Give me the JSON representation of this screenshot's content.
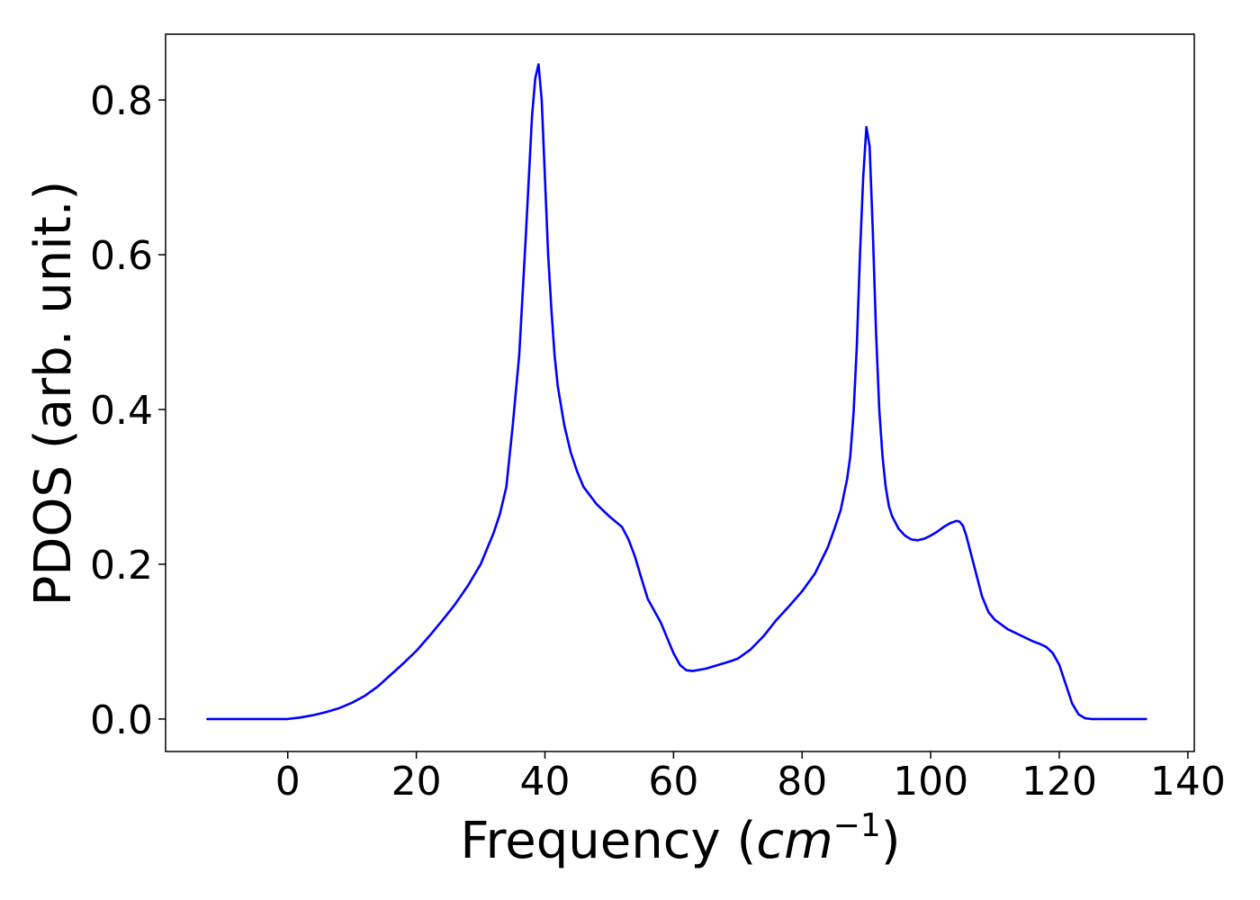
{
  "chart_data": {
    "type": "line",
    "title": "",
    "xlabel_main": "Frequency (",
    "xlabel_unit": "cm",
    "xlabel_exp": "−1",
    "xlabel_close": ")",
    "ylabel": "PDOS (arb. unit.)",
    "xlim": [
      -19,
      141
    ],
    "ylim": [
      -0.042,
      0.885
    ],
    "xticks": [
      0,
      20,
      40,
      60,
      80,
      100,
      120,
      140
    ],
    "xtick_labels": [
      "0",
      "20",
      "40",
      "60",
      "80",
      "100",
      "120",
      "140"
    ],
    "yticks": [
      0.0,
      0.2,
      0.4,
      0.6,
      0.8
    ],
    "ytick_labels": [
      "0.0",
      "0.2",
      "0.4",
      "0.6",
      "0.8"
    ],
    "grid": false,
    "series": [
      {
        "color": "#0000ff",
        "x": [
          -12.5,
          -5,
          0,
          2,
          4,
          6,
          8,
          10,
          12,
          14,
          16,
          18,
          20,
          22,
          24,
          26,
          28,
          30,
          32,
          33,
          34,
          35,
          36,
          37,
          38,
          38.5,
          39,
          39.5,
          40,
          40.5,
          41,
          41.5,
          42,
          43,
          44,
          45,
          46,
          48,
          50,
          52,
          53,
          54,
          55,
          56,
          57,
          58,
          59,
          60,
          61,
          62,
          63,
          65,
          67,
          69,
          70,
          72,
          74,
          76,
          78,
          80,
          82,
          84,
          85,
          86,
          87,
          87.5,
          88,
          88.5,
          89,
          89.5,
          90,
          90.5,
          91,
          91.5,
          92,
          92.5,
          93,
          93.5,
          94,
          95,
          96,
          97,
          98,
          99,
          100,
          101,
          102,
          103,
          104,
          104.5,
          105,
          105.5,
          106,
          107,
          108,
          109,
          110,
          112,
          114,
          116,
          117,
          118,
          119,
          120,
          121,
          122,
          123,
          124,
          125,
          127,
          130,
          133.5
        ],
        "y": [
          0.0,
          0.0,
          0.0,
          0.002,
          0.005,
          0.009,
          0.014,
          0.021,
          0.03,
          0.042,
          0.057,
          0.072,
          0.088,
          0.107,
          0.127,
          0.148,
          0.172,
          0.2,
          0.24,
          0.265,
          0.3,
          0.38,
          0.47,
          0.62,
          0.78,
          0.828,
          0.846,
          0.8,
          0.7,
          0.6,
          0.53,
          0.47,
          0.43,
          0.38,
          0.345,
          0.32,
          0.3,
          0.278,
          0.262,
          0.248,
          0.232,
          0.21,
          0.182,
          0.155,
          0.14,
          0.125,
          0.105,
          0.085,
          0.07,
          0.063,
          0.062,
          0.065,
          0.07,
          0.075,
          0.078,
          0.09,
          0.107,
          0.128,
          0.146,
          0.165,
          0.188,
          0.222,
          0.245,
          0.27,
          0.31,
          0.34,
          0.395,
          0.48,
          0.6,
          0.7,
          0.765,
          0.74,
          0.63,
          0.5,
          0.4,
          0.34,
          0.3,
          0.275,
          0.262,
          0.246,
          0.237,
          0.232,
          0.231,
          0.233,
          0.237,
          0.242,
          0.248,
          0.253,
          0.256,
          0.255,
          0.25,
          0.238,
          0.222,
          0.19,
          0.158,
          0.138,
          0.128,
          0.116,
          0.108,
          0.1,
          0.097,
          0.093,
          0.085,
          0.07,
          0.045,
          0.02,
          0.006,
          0.001,
          0.0,
          0.0,
          0.0,
          0.0
        ]
      }
    ]
  }
}
